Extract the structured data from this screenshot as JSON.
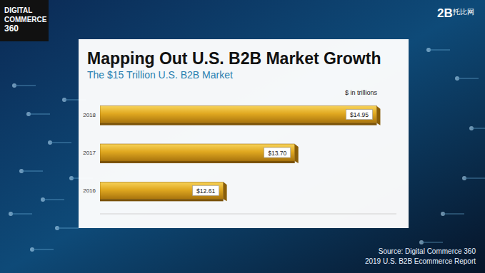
{
  "chart_data": {
    "type": "bar",
    "orientation": "horizontal",
    "title": "Mapping Out U.S. B2B Market Growth",
    "subtitle": "The $15 Trillion U.S. B2B Market",
    "xlabel": "$ in trillions",
    "categories": [
      "2018",
      "2017",
      "2016"
    ],
    "values": [
      14.95,
      13.7,
      12.61
    ],
    "value_labels": [
      "$14.95",
      "$13.70",
      "$12.61"
    ],
    "data_labels": true,
    "color": "#e0a820",
    "xlim": [
      10.73,
      15.25
    ],
    "tick_labels": "y",
    "grid": false,
    "annotations": [
      "Source: Digital Commerce 360",
      "2019 U.S. B2B Ecommerce Report"
    ]
  },
  "header": {
    "logo_left": [
      "DIGITAL",
      "COMMERCE",
      "360"
    ],
    "logo_right": [
      "2B",
      "托比网"
    ]
  }
}
